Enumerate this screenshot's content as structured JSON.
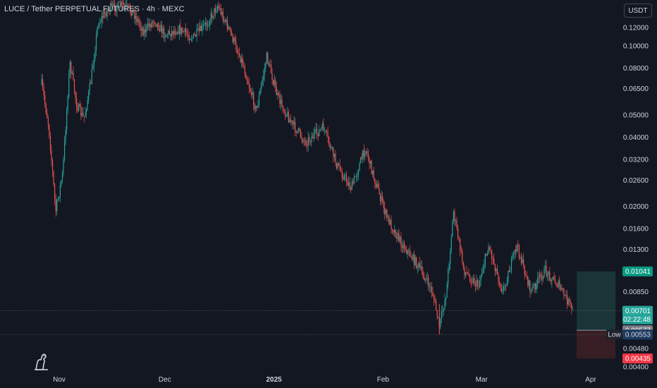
{
  "header": {
    "title": "LUCE / Tether PERPETUAL FUTURES · 4h · MEXC",
    "currency": "USDT"
  },
  "colors": {
    "background": "#131722",
    "up": "#26a69a",
    "down": "#ef5350",
    "grid_line": "#787b86",
    "profit_zone": "#1b3b3b",
    "loss_zone": "#3b1f25"
  },
  "chart_data": {
    "type": "candlestick",
    "scale": "log",
    "title": "LUCE / Tether PERPETUAL FUTURES · 4h · MEXC",
    "y_ticks": [
      "0.12000",
      "0.10000",
      "0.08000",
      "0.06500",
      "0.05000",
      "0.04000",
      "0.03200",
      "0.02600",
      "0.02000",
      "0.01600",
      "0.01300",
      "0.00850",
      "0.00480",
      "0.00400"
    ],
    "x_ticks": [
      "Nov",
      "Dec",
      "2025",
      "Feb",
      "Mar",
      "Apr"
    ],
    "price_path": [
      [
        "2024-10-27",
        0.068
      ],
      [
        "2024-10-29",
        0.045
      ],
      [
        "2024-10-31",
        0.019
      ],
      [
        "2024-11-02",
        0.028
      ],
      [
        "2024-11-04",
        0.085
      ],
      [
        "2024-11-06",
        0.055
      ],
      [
        "2024-11-08",
        0.048
      ],
      [
        "2024-11-10",
        0.07
      ],
      [
        "2024-11-12",
        0.125
      ],
      [
        "2024-11-15",
        0.145
      ],
      [
        "2024-11-19",
        0.15
      ],
      [
        "2024-11-22",
        0.14
      ],
      [
        "2024-11-25",
        0.115
      ],
      [
        "2024-11-28",
        0.13
      ],
      [
        "2024-12-01",
        0.112
      ],
      [
        "2024-12-05",
        0.118
      ],
      [
        "2024-12-09",
        0.108
      ],
      [
        "2024-12-13",
        0.125
      ],
      [
        "2024-12-16",
        0.15
      ],
      [
        "2024-12-19",
        0.12
      ],
      [
        "2024-12-23",
        0.085
      ],
      [
        "2024-12-27",
        0.052
      ],
      [
        "2024-12-30",
        0.09
      ],
      [
        "2025-01-02",
        0.06
      ],
      [
        "2025-01-06",
        0.046
      ],
      [
        "2025-01-10",
        0.038
      ],
      [
        "2025-01-15",
        0.044
      ],
      [
        "2025-01-19",
        0.03
      ],
      [
        "2025-01-23",
        0.024
      ],
      [
        "2025-01-27",
        0.036
      ],
      [
        "2025-01-29",
        0.028
      ],
      [
        "2025-02-02",
        0.018
      ],
      [
        "2025-02-06",
        0.014
      ],
      [
        "2025-02-11",
        0.011
      ],
      [
        "2025-02-15",
        0.0085
      ],
      [
        "2025-02-17",
        0.006
      ],
      [
        "2025-02-19",
        0.0085
      ],
      [
        "2025-02-21",
        0.019
      ],
      [
        "2025-02-24",
        0.0105
      ],
      [
        "2025-02-28",
        0.009
      ],
      [
        "2025-03-03",
        0.0135
      ],
      [
        "2025-03-07",
        0.0085
      ],
      [
        "2025-03-11",
        0.0135
      ],
      [
        "2025-03-15",
        0.0085
      ],
      [
        "2025-03-19",
        0.0105
      ],
      [
        "2025-03-23",
        0.009
      ],
      [
        "2025-03-27",
        0.007
      ]
    ],
    "position": {
      "take_profit": 0.01041,
      "entry": 0.00577,
      "stop_loss": 0.00435,
      "start": "2025-03-28",
      "end": "2025-04-08"
    },
    "labels": {
      "take_profit": "0.01041",
      "last_price": "0.00701",
      "countdown": "02:22:48",
      "entry": "0.00577",
      "low_label": "Low",
      "low_value": "0.00553",
      "stop_loss": "0.00435"
    },
    "grid": false,
    "legend": "none"
  }
}
